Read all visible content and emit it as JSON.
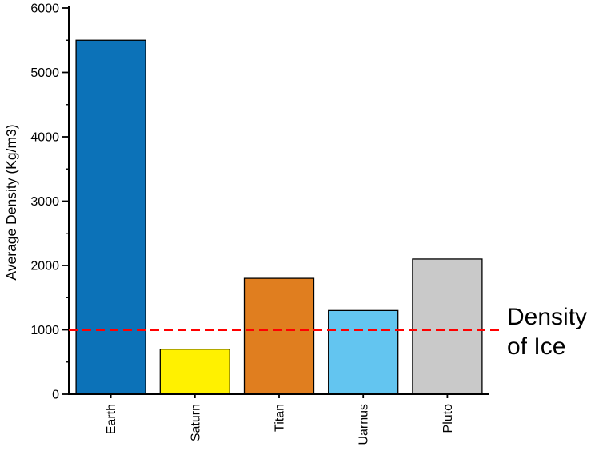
{
  "chart_data": {
    "type": "bar",
    "title": "",
    "categories": [
      "Earth",
      "Saturn",
      "Titan",
      "Uarnus",
      "Pluto"
    ],
    "values": [
      5500,
      700,
      1800,
      1300,
      2100
    ],
    "bar_colors": [
      "#0C72B8",
      "#FFF100",
      "#E07E1F",
      "#63C5F0",
      "#C9C9C9"
    ],
    "bar_edge_color": "#000000",
    "xlabel": "",
    "ylabel": "Average Density (Kg/m3)",
    "ylim": [
      0,
      6000
    ],
    "yticks": [
      0,
      1000,
      2000,
      3000,
      4000,
      5000,
      6000
    ],
    "minor_tick_interval": 500,
    "grid": false,
    "legend": "none",
    "background": "#FFFFFF",
    "axis_color": "#000000",
    "reference_line": {
      "value": 1000,
      "color": "#FF0000",
      "style": "dashed",
      "label": "Density of Ice",
      "label_lines": [
        "Density",
        "of Ice"
      ]
    }
  }
}
